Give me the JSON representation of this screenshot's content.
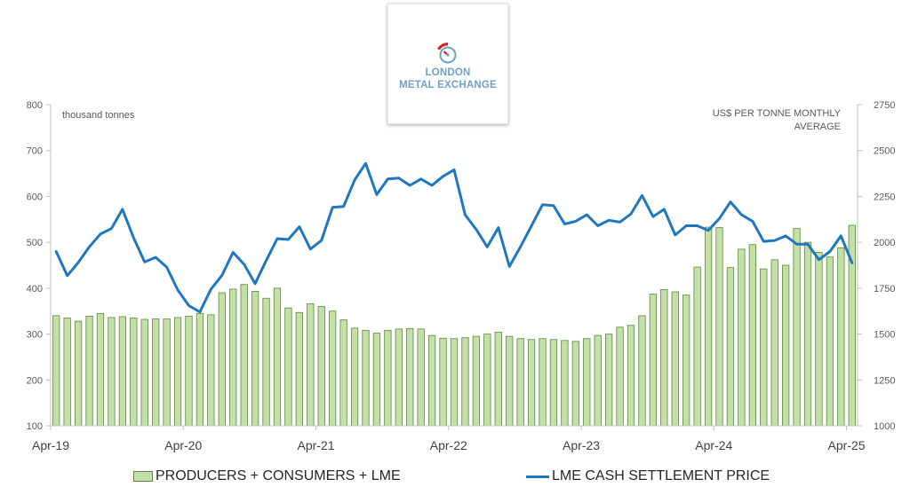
{
  "logo": {
    "line1": "LONDON",
    "line2": "METAL EXCHANGE"
  },
  "units": {
    "left": "thousand tonnes",
    "right": "US$ PER TONNE MONTHLY AVERAGE"
  },
  "legend": {
    "bars": "PRODUCERS + CONSUMERS + LME",
    "line": "LME CASH SETTLEMENT PRICE"
  },
  "colors": {
    "bar_fill": "#c4e0a8",
    "bar_stroke": "#5a8a3a",
    "line": "#1f77c0",
    "axis": "#bfbfbf",
    "text": "#595959"
  },
  "chart_data": {
    "type": "bar",
    "x_labels": [
      "Apr-19",
      "Apr-20",
      "Apr-21",
      "Apr-22",
      "Apr-23",
      "Apr-24",
      "Apr-25"
    ],
    "y_left": {
      "min": 100,
      "max": 800,
      "ticks": [
        100,
        200,
        300,
        400,
        500,
        600,
        700,
        800
      ]
    },
    "y_right": {
      "min": 1000,
      "max": 2750,
      "ticks": [
        1000,
        1250,
        1500,
        1750,
        2000,
        2250,
        2500,
        2750
      ]
    },
    "grid": false,
    "legend_position": "bottom",
    "series": [
      {
        "name": "PRODUCERS + CONSUMERS + LME",
        "type": "bar",
        "axis": "left",
        "values": [
          340,
          335,
          328,
          339,
          345,
          336,
          338,
          335,
          332,
          333,
          333,
          336,
          339,
          345,
          342,
          390,
          398,
          408,
          393,
          378,
          400,
          357,
          347,
          366,
          360,
          350,
          331,
          313,
          308,
          302,
          308,
          311,
          312,
          311,
          297,
          291,
          290,
          292,
          295,
          300,
          304,
          295,
          290,
          288,
          290,
          288,
          286,
          284,
          290,
          297,
          300,
          315,
          319,
          340,
          387,
          397,
          392,
          385,
          446,
          533,
          532,
          445,
          485,
          495,
          442,
          462,
          450,
          530,
          500,
          478,
          468,
          488,
          537
        ]
      },
      {
        "name": "LME CASH SETTLEMENT PRICE",
        "type": "line",
        "axis": "right",
        "values": [
          1950,
          1818,
          1890,
          1975,
          2045,
          2075,
          2180,
          2025,
          1893,
          1918,
          1865,
          1740,
          1655,
          1620,
          1745,
          1820,
          1945,
          1880,
          1775,
          1900,
          2020,
          2015,
          2085,
          1963,
          2010,
          2190,
          2195,
          2340,
          2430,
          2260,
          2345,
          2350,
          2310,
          2345,
          2310,
          2360,
          2395,
          2150,
          2070,
          1975,
          2080,
          1868,
          1975,
          2090,
          2205,
          2200,
          2100,
          2115,
          2150,
          2090,
          2120,
          2110,
          2155,
          2255,
          2140,
          2180,
          2040,
          2090,
          2090,
          2065,
          2130,
          2220,
          2150,
          2115,
          2005,
          2010,
          2035,
          1990,
          1990,
          1905,
          1950,
          2035,
          1888
        ]
      }
    ]
  }
}
